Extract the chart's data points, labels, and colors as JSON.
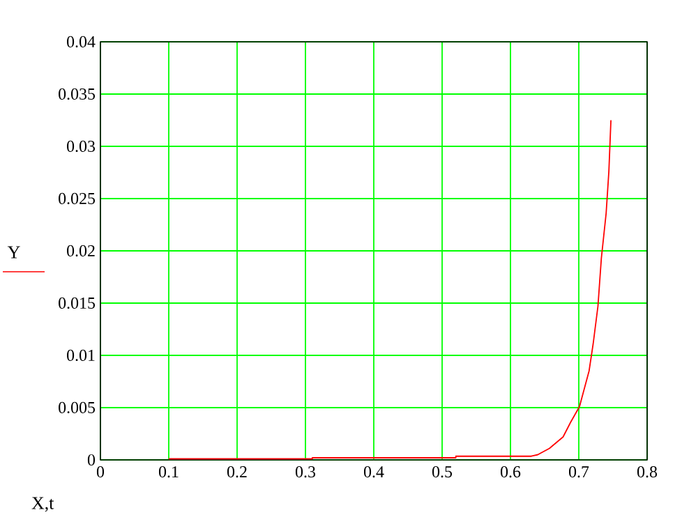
{
  "chart_data": {
    "type": "line",
    "xlabel": "X,t",
    "ylabel": "Y",
    "xlim": [
      0,
      0.8
    ],
    "xticks": [
      0,
      0.1,
      0.2,
      0.3,
      0.4,
      0.5,
      0.6,
      0.7,
      0.8
    ],
    "ylim": [
      0,
      0.04
    ],
    "yticks": [
      0,
      0.005,
      0.01,
      0.015,
      0.02,
      0.025,
      0.03,
      0.035,
      0.04
    ],
    "grid": true,
    "series": [
      {
        "color": "#ff0000",
        "x": [
          0.1,
          0.31,
          0.31,
          0.52,
          0.52,
          0.63,
          0.64,
          0.657,
          0.677,
          0.688,
          0.701,
          0.715,
          0.721,
          0.728,
          0.733,
          0.74,
          0.744,
          0.747
        ],
        "values": [
          0.0001,
          0.0001,
          0.0002,
          0.0002,
          0.00035,
          0.00035,
          0.0005,
          0.0011,
          0.0022,
          0.0036,
          0.0051,
          0.0085,
          0.0111,
          0.0147,
          0.0193,
          0.0236,
          0.0276,
          0.0325
        ]
      }
    ]
  }
}
